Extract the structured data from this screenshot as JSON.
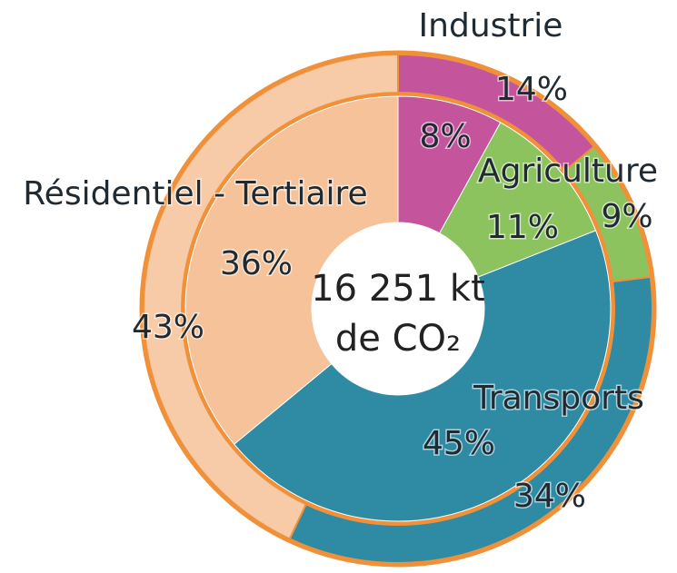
{
  "chart_data": {
    "type": "donut",
    "center_label": [
      "16 251 kt",
      "de CO₂"
    ],
    "categories": [
      "Industrie",
      "Agriculture",
      "Transports",
      "Résidentiel - Tertiaire"
    ],
    "colors": [
      "#c4559c",
      "#8dc35f",
      "#2f8ba4",
      "#f6c29a"
    ],
    "series": [
      {
        "values": [
          8,
          11,
          45,
          36
        ],
        "value_labels": [
          "8%",
          "11%",
          "45%",
          "36%"
        ]
      },
      {
        "values": [
          14,
          9,
          34,
          43
        ],
        "value_labels": [
          "14%",
          "9%",
          "34%",
          "43%"
        ]
      }
    ]
  }
}
